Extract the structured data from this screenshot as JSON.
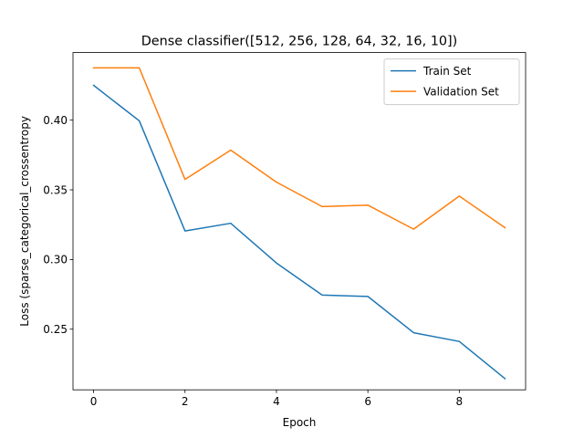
{
  "chart_data": {
    "type": "line",
    "title": "Dense classifier([512, 256, 128, 64, 32, 16, 10])",
    "xlabel": "Epoch",
    "ylabel": "Loss (sparse_categorical_crossentropy",
    "x": [
      0,
      1,
      2,
      3,
      4,
      5,
      6,
      7,
      8,
      9
    ],
    "xlim": [
      -0.45,
      9.45
    ],
    "ylim": [
      0.2065,
      0.4485
    ],
    "xticks": [
      0,
      2,
      4,
      6,
      8
    ],
    "xtick_labels": [
      "0",
      "2",
      "4",
      "6",
      "8"
    ],
    "yticks": [
      0.25,
      0.3,
      0.35,
      0.4
    ],
    "ytick_labels": [
      "0.25",
      "0.30",
      "0.35",
      "0.40"
    ],
    "grid": false,
    "legend_position": "upper right",
    "series": [
      {
        "name": "Train Set",
        "color": "#1f77b4",
        "values": [
          0.425,
          0.3995,
          0.3205,
          0.326,
          0.2975,
          0.2745,
          0.2735,
          0.2475,
          0.2412,
          0.2145
        ]
      },
      {
        "name": "Validation Set",
        "color": "#ff7f0e",
        "values": [
          0.4375,
          0.4375,
          0.3575,
          0.3785,
          0.3555,
          0.338,
          0.339,
          0.3218,
          0.3455,
          0.3228
        ]
      }
    ]
  }
}
